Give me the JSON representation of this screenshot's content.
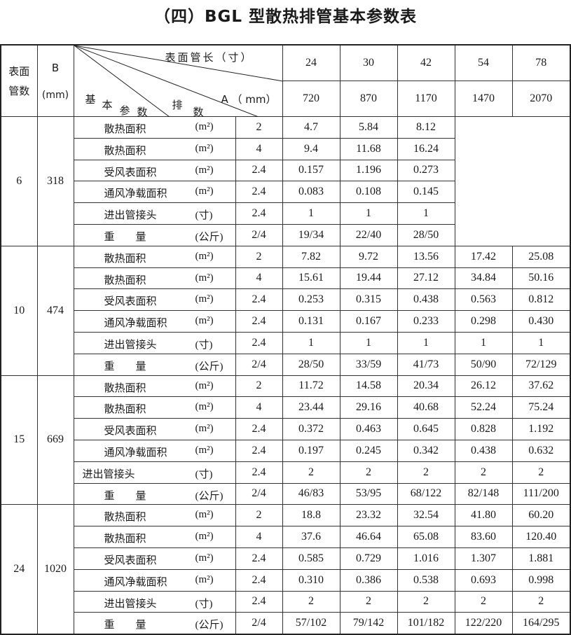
{
  "title": "（四）BGL 型散热排管基本参数表",
  "header": {
    "tubes_label": "表面管数",
    "b_label": "B",
    "b_unit": "(mm)",
    "length_label": "表面管长（寸）",
    "a_label": "A （ mm）",
    "param_chars": [
      "基",
      "本",
      "参",
      "数"
    ],
    "rows_chars": [
      "排",
      "数"
    ],
    "lengths": [
      "24",
      "30",
      "42",
      "54",
      "78"
    ],
    "a_values": [
      "720",
      "870",
      "1170",
      "1470",
      "2070"
    ]
  },
  "groups": [
    {
      "tubes": "6",
      "b": "318",
      "rows": [
        {
          "param": "散热面积",
          "unit": "(m²)",
          "rank": "2",
          "values": [
            "4.7",
            "5.84",
            "8.12"
          ]
        },
        {
          "param": "散热面积",
          "unit": "(m²)",
          "rank": "4",
          "values": [
            "9.4",
            "11.68",
            "16.24"
          ]
        },
        {
          "param": "受风表面积",
          "unit": "(m²)",
          "rank": "2.4",
          "values": [
            "0.157",
            "1.196",
            "0.273"
          ]
        },
        {
          "param": "通风净载面积",
          "unit": "(m²)",
          "rank": "2.4",
          "values": [
            "0.083",
            "0.108",
            "0.145"
          ]
        },
        {
          "param": "进出管接头",
          "unit": "(寸)",
          "rank": "2.4",
          "values": [
            "1",
            "1",
            "1"
          ]
        },
        {
          "param": "重　　量",
          "unit": "(公斤)",
          "rank": "2/4",
          "values": [
            "19/34",
            "22/40",
            "28/50"
          ]
        }
      ]
    },
    {
      "tubes": "10",
      "b": "474",
      "rows": [
        {
          "param": "散热面积",
          "unit": "(m²)",
          "rank": "2",
          "values": [
            "7.82",
            "9.72",
            "13.56",
            "17.42",
            "25.08"
          ]
        },
        {
          "param": "散热面积",
          "unit": "(m²)",
          "rank": "4",
          "values": [
            "15.61",
            "19.44",
            "27.12",
            "34.84",
            "50.16"
          ]
        },
        {
          "param": "受风表面积",
          "unit": "(m²)",
          "rank": "2.4",
          "values": [
            "0.253",
            "0.315",
            "0.438",
            "0.563",
            "0.812"
          ]
        },
        {
          "param": "通风净载面积",
          "unit": "(m²)",
          "rank": "2.4",
          "values": [
            "0.131",
            "0.167",
            "0.233",
            "0.298",
            "0.430"
          ]
        },
        {
          "param": "进出管接头",
          "unit": "(寸)",
          "rank": "2.4",
          "values": [
            "1",
            "1",
            "1",
            "1",
            "1"
          ]
        },
        {
          "param": "重　　量",
          "unit": "(公斤)",
          "rank": "2/4",
          "values": [
            "28/50",
            "33/59",
            "41/73",
            "50/90",
            "72/129"
          ]
        }
      ]
    },
    {
      "tubes": "15",
      "b": "669",
      "rows": [
        {
          "param": "散热面积",
          "unit": "(m²)",
          "rank": "2",
          "values": [
            "11.72",
            "14.58",
            "20.34",
            "26.12",
            "37.62"
          ]
        },
        {
          "param": "散热面积",
          "unit": "(m²)",
          "rank": "4",
          "values": [
            "23.44",
            "29.16",
            "40.68",
            "52.24",
            "75.24"
          ]
        },
        {
          "param": "受风表面积",
          "unit": "(m²)",
          "rank": "2.4",
          "values": [
            "0.372",
            "0.463",
            "0.645",
            "0.828",
            "1.192"
          ]
        },
        {
          "param": "通风净载面积",
          "unit": "(m²)",
          "rank": "2.4",
          "values": [
            "0.197",
            "0.245",
            "0.342",
            "0.438",
            "0.632"
          ]
        },
        {
          "param": "进出管接头",
          "unit": "(寸)",
          "rank": "2.4",
          "values": [
            "2",
            "2",
            "2",
            "2",
            "2"
          ],
          "shift": true
        },
        {
          "param": "重　　量",
          "unit": "(公斤)",
          "rank": "2/4",
          "values": [
            "46/83",
            "53/95",
            "68/122",
            "82/148",
            "111/200"
          ]
        }
      ]
    },
    {
      "tubes": "24",
      "b": "1020",
      "rows": [
        {
          "param": "散热面积",
          "unit": "(m²)",
          "rank": "2",
          "values": [
            "18.8",
            "23.32",
            "32.54",
            "41.80",
            "60.20"
          ]
        },
        {
          "param": "散热面积",
          "unit": "(m²)",
          "rank": "4",
          "values": [
            "37.6",
            "46.64",
            "65.08",
            "83.60",
            "120.40"
          ]
        },
        {
          "param": "受风表面积",
          "unit": "(m²)",
          "rank": "2.4",
          "values": [
            "0.585",
            "0.729",
            "1.016",
            "1.307",
            "1.881"
          ]
        },
        {
          "param": "通风净载面积",
          "unit": "(m²)",
          "rank": "2.4",
          "values": [
            "0.310",
            "0.386",
            "0.538",
            "0.693",
            "0.998"
          ]
        },
        {
          "param": "进出管接头",
          "unit": "(寸)",
          "rank": "2.4",
          "values": [
            "2",
            "2",
            "2",
            "2",
            "2"
          ]
        },
        {
          "param": "重　　量",
          "unit": "(公斤)",
          "rank": "2/4",
          "values": [
            "57/102",
            "79/142",
            "101/182",
            "122/220",
            "164/295"
          ]
        }
      ]
    }
  ]
}
